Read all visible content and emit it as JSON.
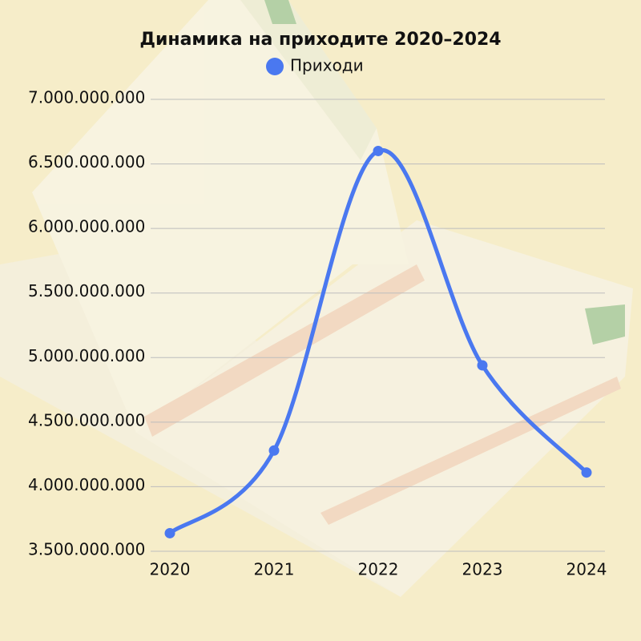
{
  "chart_data": {
    "type": "line",
    "title": "Динамика на приходите 2020–2024",
    "categories": [
      "2020",
      "2021",
      "2022",
      "2023",
      "2024"
    ],
    "series": [
      {
        "name": "Приходи",
        "color": "#4a78f0",
        "values": [
          3640000000,
          4280000000,
          6600000000,
          4940000000,
          4110000000
        ]
      }
    ],
    "ylim": [
      3500000000,
      7000000000
    ],
    "yticks": [
      {
        "value": 3500000000,
        "label": "3.500.000.000"
      },
      {
        "value": 4000000000,
        "label": "4.000.000.000"
      },
      {
        "value": 4500000000,
        "label": "4.500.000.000"
      },
      {
        "value": 5000000000,
        "label": "5.000.000.000"
      },
      {
        "value": 5500000000,
        "label": "5.500.000.000"
      },
      {
        "value": 6000000000,
        "label": "6.000.000.000"
      },
      {
        "value": 6500000000,
        "label": "6.500.000.000"
      },
      {
        "value": 7000000000,
        "label": "7.000.000.000"
      }
    ],
    "grid": true,
    "legend": "top"
  }
}
